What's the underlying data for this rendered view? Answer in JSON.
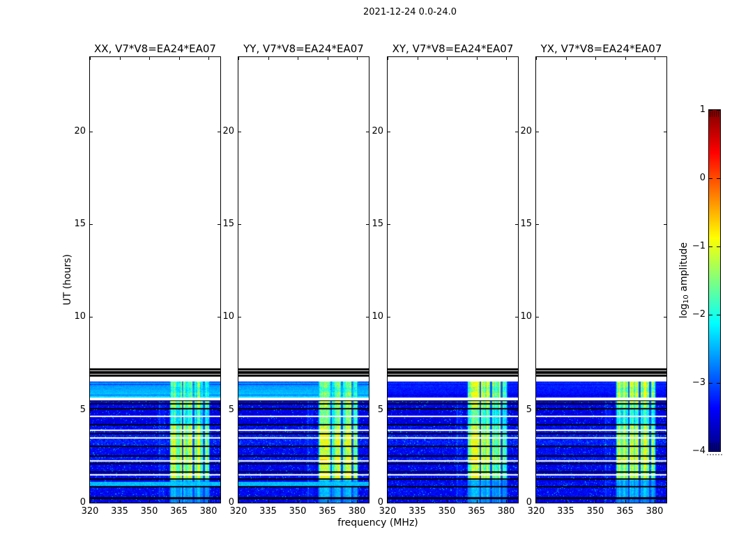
{
  "figure": {
    "suptitle": "2021-12-24 0.0-24.0",
    "xlabel": "frequency (MHz)",
    "ylabel": "UT (hours)",
    "colorbar": {
      "label_pre": "log",
      "label_sub": "10",
      "label_post": " amplitude"
    }
  },
  "chart_data": {
    "type": "heatmap",
    "title": "2021-12-24 0.0-24.0",
    "x": {
      "label": "frequency (MHz)",
      "unit": "MHz",
      "range": [
        320,
        386
      ],
      "ticks": [
        320,
        335,
        350,
        365,
        380
      ]
    },
    "y": {
      "label": "UT (hours)",
      "unit": "hours",
      "range": [
        0,
        24
      ],
      "ticks": [
        0,
        5,
        10,
        15,
        20
      ]
    },
    "z": {
      "label": "log10 amplitude",
      "range": [
        -4,
        1
      ],
      "ticks": [
        1,
        0,
        -1,
        -2,
        -3,
        -4
      ],
      "tick_labels": [
        "1",
        "0",
        "−1",
        "−2",
        "−3",
        "−4"
      ],
      "colormap": "jet"
    },
    "panels": [
      {
        "pol": "XX",
        "title": "XX, V7*V8=EA24*EA07",
        "seed": 101,
        "cyan_rows": 1,
        "sun_band": 1.0,
        "hot": 0.55
      },
      {
        "pol": "YY",
        "title": "YY, V7*V8=EA24*EA07",
        "seed": 202,
        "cyan_rows": 1,
        "sun_band": 1.0,
        "hot": 1.0
      },
      {
        "pol": "XY",
        "title": "XY, V7*V8=EA24*EA07",
        "seed": 303,
        "cyan_rows": 0,
        "sun_band": 0.15,
        "hot": 1.0
      },
      {
        "pol": "YX",
        "title": "YX, V7*V8=EA24*EA07",
        "seed": 404,
        "cyan_rows": 0,
        "sun_band": 0.2,
        "hot": 0.9
      }
    ],
    "features": {
      "observed_tmax_hours": 7.25,
      "blank_above_hours": 7.25,
      "black_band_stripes": [
        [
          6.79,
          6.9
        ],
        [
          6.94,
          7.09
        ],
        [
          7.12,
          7.25
        ]
      ],
      "white_gaps": [
        [
          6.52,
          6.79
        ],
        [
          5.51,
          5.66
        ]
      ],
      "bright_row_region": {
        "t0": 5.66,
        "t1": 6.52,
        "row_height": 0.145
      },
      "noise_region_t1": 5.51,
      "block_boundaries": [
        0,
        0.26,
        0.85,
        1.28,
        1.65,
        2.1,
        2.5,
        3.05,
        3.7,
        4.2,
        5.05,
        5.33,
        5.51
      ],
      "block_rfi_gain": [
        0.35,
        0.6,
        0.55,
        1.0,
        0.9,
        1.05,
        0.9,
        1.0,
        0.85,
        0.6,
        0.8,
        0.95
      ],
      "block_base_offset": [
        0.0,
        0.05,
        -0.05,
        0.1,
        0.0,
        0.15,
        0.05,
        0.2,
        0.1,
        -0.05,
        0.05,
        0.0
      ],
      "white_lines": [
        1.5,
        2.25,
        3.5,
        3.9,
        4.65
      ],
      "cyan_band": [
        0.88,
        1.12
      ],
      "noise_base_log_amp": -3.45,
      "rfi": {
        "f0": 360.4,
        "f1": 380.6,
        "edge": 0.8,
        "guards": [
          [
            366.5,
            367.4
          ],
          [
            371.9,
            372.8
          ],
          [
            377.3,
            378.1
          ]
        ],
        "faint_band": [
          354.5,
          358.0
        ],
        "hotspot": {
          "t": 2.28,
          "f0": 360.8,
          "f1": 365.0
        }
      }
    }
  },
  "layout_text": {}
}
